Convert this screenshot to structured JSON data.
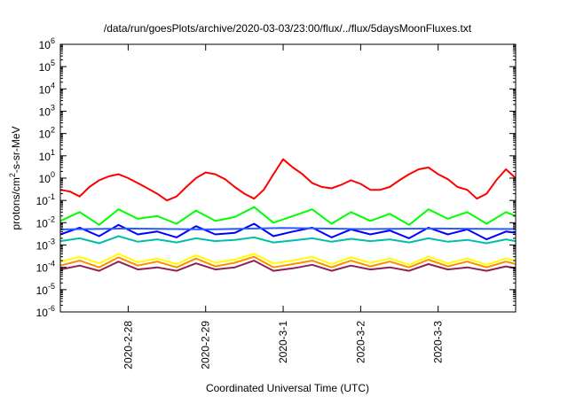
{
  "chart_data": {
    "type": "line",
    "title": "/data/run/goesPlots/archive/2020-03-03/23:00/flux/../flux/5daysMoonFluxes.txt",
    "xlabel": "Coordinated Universal Time (UTC)",
    "ylabel": {
      "base": "protons/cm",
      "sup": "2",
      "rest": "-s-sr-MeV"
    },
    "y_scale": "log",
    "ylim": [
      1e-06,
      1000000.0
    ],
    "y_ticks": [
      {
        "value": 1e-06,
        "base": "10",
        "exp": "-6"
      },
      {
        "value": 1e-05,
        "base": "10",
        "exp": "-5"
      },
      {
        "value": 0.0001,
        "base": "10",
        "exp": "-4"
      },
      {
        "value": 0.001,
        "base": "10",
        "exp": "-3"
      },
      {
        "value": 0.01,
        "base": "10",
        "exp": "-2"
      },
      {
        "value": 0.1,
        "base": "10",
        "exp": "-1"
      },
      {
        "value": 1.0,
        "base": "10",
        "exp": "0"
      },
      {
        "value": 10.0,
        "base": "10",
        "exp": "1"
      },
      {
        "value": 100.0,
        "base": "10",
        "exp": "2"
      },
      {
        "value": 1000.0,
        "base": "10",
        "exp": "3"
      },
      {
        "value": 10000.0,
        "base": "10",
        "exp": "4"
      },
      {
        "value": 100000.0,
        "base": "10",
        "exp": "5"
      },
      {
        "value": 1000000.0,
        "base": "10",
        "exp": "6"
      }
    ],
    "xlim": [
      "2020-02-27T03:00",
      "2020-03-04T00:00"
    ],
    "x_ticks": [
      {
        "value": "2020-02-28T00:00",
        "label": "2020-2-28"
      },
      {
        "value": "2020-02-29T00:00",
        "label": "2020-2-29"
      },
      {
        "value": "2020-03-01T00:00",
        "label": "2020-3-1"
      },
      {
        "value": "2020-03-02T00:00",
        "label": "2020-3-2"
      },
      {
        "value": "2020-03-03T00:00",
        "label": "2020-3-3"
      }
    ],
    "grid": false,
    "legend": "none",
    "series": [
      {
        "color": "#ff0000",
        "x": [
          "2020-02-27T03:00",
          "2020-02-27T06:00",
          "2020-02-27T09:00",
          "2020-02-27T12:00",
          "2020-02-27T15:00",
          "2020-02-27T18:00",
          "2020-02-27T21:00",
          "2020-02-28T00:00",
          "2020-02-28T03:00",
          "2020-02-28T06:00",
          "2020-02-28T09:00",
          "2020-02-28T12:00",
          "2020-02-28T15:00",
          "2020-02-28T18:00",
          "2020-02-28T21:00",
          "2020-02-29T00:00",
          "2020-02-29T03:00",
          "2020-02-29T06:00",
          "2020-02-29T09:00",
          "2020-02-29T12:00",
          "2020-02-29T15:00",
          "2020-02-29T18:00",
          "2020-02-29T21:00",
          "2020-03-01T00:00",
          "2020-03-01T03:00",
          "2020-03-01T06:00",
          "2020-03-01T09:00",
          "2020-03-01T12:00",
          "2020-03-01T15:00",
          "2020-03-01T18:00",
          "2020-03-01T21:00",
          "2020-03-02T00:00",
          "2020-03-02T03:00",
          "2020-03-02T06:00",
          "2020-03-02T09:00",
          "2020-03-02T12:00",
          "2020-03-02T15:00",
          "2020-03-02T18:00",
          "2020-03-02T21:00",
          "2020-03-03T00:00",
          "2020-03-03T03:00",
          "2020-03-03T06:00",
          "2020-03-03T09:00",
          "2020-03-03T12:00",
          "2020-03-03T15:00",
          "2020-03-03T18:00",
          "2020-03-03T21:00",
          "2020-03-04T00:00"
        ],
        "values": [
          0.3,
          0.25,
          0.15,
          0.4,
          0.8,
          1.2,
          1.5,
          1.0,
          0.6,
          0.35,
          0.2,
          0.1,
          0.15,
          0.4,
          1.0,
          1.8,
          1.5,
          0.9,
          0.4,
          0.2,
          0.12,
          0.3,
          1.5,
          7.0,
          3.0,
          1.5,
          0.6,
          0.4,
          0.35,
          0.5,
          0.8,
          0.55,
          0.3,
          0.3,
          0.4,
          0.8,
          1.5,
          2.5,
          3.0,
          1.5,
          0.9,
          0.4,
          0.3,
          0.12,
          0.2,
          0.8,
          2.5,
          1.0
        ]
      },
      {
        "color": "#00ff00",
        "x": [
          "2020-02-27T03:00",
          "2020-02-27T09:00",
          "2020-02-27T15:00",
          "2020-02-27T21:00",
          "2020-02-28T03:00",
          "2020-02-28T09:00",
          "2020-02-28T15:00",
          "2020-02-28T21:00",
          "2020-02-29T03:00",
          "2020-02-29T09:00",
          "2020-02-29T15:00",
          "2020-02-29T21:00",
          "2020-03-01T03:00",
          "2020-03-01T09:00",
          "2020-03-01T15:00",
          "2020-03-01T21:00",
          "2020-03-02T03:00",
          "2020-03-02T09:00",
          "2020-03-02T15:00",
          "2020-03-02T21:00",
          "2020-03-03T03:00",
          "2020-03-03T09:00",
          "2020-03-03T15:00",
          "2020-03-03T21:00",
          "2020-03-04T00:00"
        ],
        "values": [
          0.012,
          0.03,
          0.008,
          0.04,
          0.015,
          0.02,
          0.009,
          0.035,
          0.012,
          0.018,
          0.05,
          0.01,
          0.02,
          0.04,
          0.009,
          0.03,
          0.012,
          0.025,
          0.008,
          0.04,
          0.015,
          0.03,
          0.009,
          0.03,
          0.02
        ]
      },
      {
        "color": "#00bfa8",
        "x": [
          "2020-02-27T03:00",
          "2020-02-27T09:00",
          "2020-02-27T15:00",
          "2020-02-27T21:00",
          "2020-02-28T03:00",
          "2020-02-28T09:00",
          "2020-02-28T15:00",
          "2020-02-28T21:00",
          "2020-02-29T03:00",
          "2020-02-29T09:00",
          "2020-02-29T15:00",
          "2020-02-29T21:00",
          "2020-03-01T03:00",
          "2020-03-01T09:00",
          "2020-03-01T15:00",
          "2020-03-01T21:00",
          "2020-03-02T03:00",
          "2020-03-02T09:00",
          "2020-03-02T15:00",
          "2020-03-02T21:00",
          "2020-03-03T03:00",
          "2020-03-03T09:00",
          "2020-03-03T15:00",
          "2020-03-03T21:00",
          "2020-03-04T00:00"
        ],
        "values": [
          0.0015,
          0.002,
          0.0012,
          0.0025,
          0.0014,
          0.0018,
          0.0013,
          0.002,
          0.0015,
          0.0017,
          0.0022,
          0.0013,
          0.0016,
          0.002,
          0.0014,
          0.0019,
          0.0015,
          0.0018,
          0.0013,
          0.002,
          0.0014,
          0.0017,
          0.0012,
          0.0018,
          0.0015
        ]
      },
      {
        "color": "#0000ff",
        "x": [
          "2020-02-27T03:00",
          "2020-02-27T09:00",
          "2020-02-27T15:00",
          "2020-02-27T21:00",
          "2020-02-28T03:00",
          "2020-02-28T09:00",
          "2020-02-28T15:00",
          "2020-02-28T21:00",
          "2020-02-29T03:00",
          "2020-02-29T09:00",
          "2020-02-29T15:00",
          "2020-02-29T21:00",
          "2020-03-01T03:00",
          "2020-03-01T09:00",
          "2020-03-01T15:00",
          "2020-03-01T21:00",
          "2020-03-02T03:00",
          "2020-03-02T09:00",
          "2020-03-02T15:00",
          "2020-03-02T21:00",
          "2020-03-03T03:00",
          "2020-03-03T09:00",
          "2020-03-03T15:00",
          "2020-03-03T21:00",
          "2020-03-04T00:00"
        ],
        "values": [
          0.003,
          0.006,
          0.0025,
          0.008,
          0.003,
          0.004,
          0.0022,
          0.007,
          0.003,
          0.0035,
          0.009,
          0.0025,
          0.004,
          0.006,
          0.0022,
          0.005,
          0.003,
          0.0045,
          0.002,
          0.006,
          0.003,
          0.005,
          0.0018,
          0.004,
          0.0035
        ]
      },
      {
        "color": "#2a5cff",
        "x": [
          "2020-02-27T03:00",
          "2020-02-28T00:00",
          "2020-02-29T00:00",
          "2020-03-01T00:00",
          "2020-03-02T00:00",
          "2020-03-03T00:00",
          "2020-03-04T00:00"
        ],
        "values": [
          0.005,
          0.0055,
          0.005,
          0.0058,
          0.0052,
          0.0055,
          0.0052
        ]
      },
      {
        "color": "#ffff00",
        "x": [
          "2020-02-27T03:00",
          "2020-02-27T09:00",
          "2020-02-27T15:00",
          "2020-02-27T21:00",
          "2020-02-28T03:00",
          "2020-02-28T09:00",
          "2020-02-28T15:00",
          "2020-02-28T21:00",
          "2020-02-29T03:00",
          "2020-02-29T09:00",
          "2020-02-29T15:00",
          "2020-02-29T21:00",
          "2020-03-01T03:00",
          "2020-03-01T09:00",
          "2020-03-01T15:00",
          "2020-03-01T21:00",
          "2020-03-02T03:00",
          "2020-03-02T09:00",
          "2020-03-02T15:00",
          "2020-03-02T21:00",
          "2020-03-03T03:00",
          "2020-03-03T09:00",
          "2020-03-03T15:00",
          "2020-03-03T21:00",
          "2020-03-04T00:00"
        ],
        "values": [
          0.00018,
          0.0003,
          0.00015,
          0.0004,
          0.00017,
          0.00025,
          0.00014,
          0.00035,
          0.00016,
          0.00022,
          0.0004,
          0.00015,
          0.0002,
          0.0003,
          0.00014,
          0.00028,
          0.00016,
          0.00025,
          0.00013,
          0.0003,
          0.00015,
          0.00025,
          0.00013,
          0.00025,
          0.0002
        ]
      },
      {
        "color": "#ff8c00",
        "x": [
          "2020-02-27T03:00",
          "2020-02-27T09:00",
          "2020-02-27T15:00",
          "2020-02-27T21:00",
          "2020-02-28T03:00",
          "2020-02-28T09:00",
          "2020-02-28T15:00",
          "2020-02-28T21:00",
          "2020-02-29T03:00",
          "2020-02-29T09:00",
          "2020-02-29T15:00",
          "2020-02-29T21:00",
          "2020-03-01T03:00",
          "2020-03-01T09:00",
          "2020-03-01T15:00",
          "2020-03-01T21:00",
          "2020-03-02T03:00",
          "2020-03-02T09:00",
          "2020-03-02T15:00",
          "2020-03-02T21:00",
          "2020-03-03T03:00",
          "2020-03-03T09:00",
          "2020-03-03T15:00",
          "2020-03-03T21:00",
          "2020-03-04T00:00"
        ],
        "values": [
          0.00012,
          0.0002,
          0.0001,
          0.00028,
          0.00012,
          0.00018,
          0.0001,
          0.00025,
          0.00011,
          0.00016,
          0.0003,
          0.0001,
          0.00014,
          0.0002,
          0.0001,
          0.0002,
          0.00011,
          0.00018,
          0.0001,
          0.00022,
          0.00011,
          0.00018,
          0.0001,
          0.00018,
          0.00014
        ]
      },
      {
        "color": "#8b2252",
        "x": [
          "2020-02-27T03:00",
          "2020-02-27T09:00",
          "2020-02-27T15:00",
          "2020-02-27T21:00",
          "2020-02-28T03:00",
          "2020-02-28T09:00",
          "2020-02-28T15:00",
          "2020-02-28T21:00",
          "2020-02-29T03:00",
          "2020-02-29T09:00",
          "2020-02-29T15:00",
          "2020-02-29T21:00",
          "2020-03-01T03:00",
          "2020-03-01T09:00",
          "2020-03-01T15:00",
          "2020-03-01T21:00",
          "2020-03-02T03:00",
          "2020-03-02T09:00",
          "2020-03-02T15:00",
          "2020-03-02T21:00",
          "2020-03-03T03:00",
          "2020-03-03T09:00",
          "2020-03-03T15:00",
          "2020-03-03T21:00",
          "2020-03-04T00:00"
        ],
        "values": [
          8e-05,
          0.00012,
          7e-05,
          0.00018,
          8e-05,
          0.0001,
          7e-05,
          0.00015,
          8e-05,
          0.0001,
          0.0002,
          7e-05,
          9e-05,
          0.00013,
          7e-05,
          0.00012,
          8e-05,
          0.0001,
          7e-05,
          0.00014,
          8e-05,
          0.0001,
          7e-05,
          0.00011,
          9e-05
        ]
      }
    ]
  }
}
